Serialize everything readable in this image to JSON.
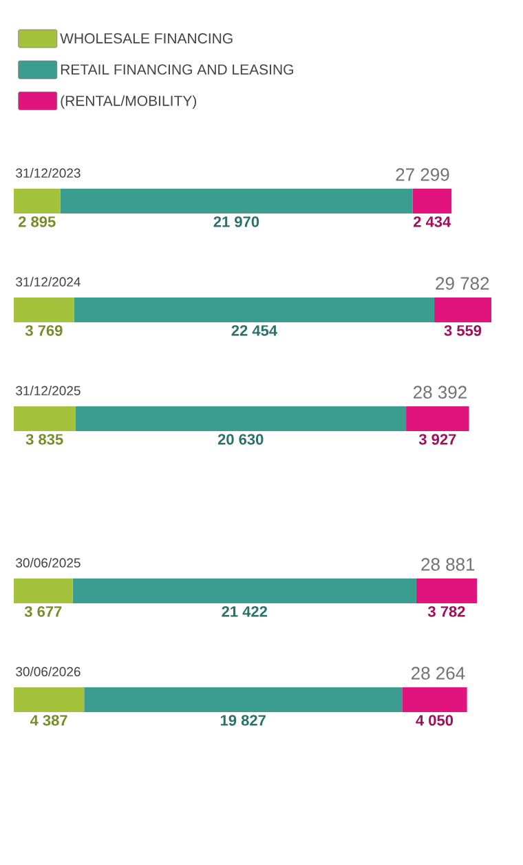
{
  "chart_data": [
    {
      "type": "bar",
      "orientation": "horizontal",
      "stacked": true,
      "legend": "top left",
      "categories": [
        "31/12/2023",
        "31/12/2024",
        "31/12/2025"
      ],
      "series": [
        {
          "name": "WHOLESALE FINANCING",
          "color": "#a4c23c",
          "values": [
            2895,
            3769,
            3835
          ],
          "value_labels": [
            "2 895",
            "3 769",
            "3 835"
          ]
        },
        {
          "name": "RETAIL FINANCING AND LEASING",
          "color": "#3a9d8f",
          "values": [
            21970,
            22454,
            20630
          ],
          "value_labels": [
            "21 970",
            "22 454",
            "20 630"
          ]
        },
        {
          "name": "(RENTAL/MOBILITY)",
          "color": "#e0147c",
          "values": [
            2434,
            3559,
            3927
          ],
          "value_labels": [
            "2 434",
            "3 559",
            "3 927"
          ]
        }
      ],
      "totals": [
        "27 299",
        "29 782",
        "28 392"
      ]
    },
    {
      "type": "bar",
      "orientation": "horizontal",
      "stacked": true,
      "categories": [
        "30/06/2025",
        "30/06/2026"
      ],
      "series": [
        {
          "color": "#a4c23c",
          "values": [
            3677,
            4387
          ],
          "value_labels": [
            "3 677",
            "4 387"
          ]
        },
        {
          "color": "#3a9d8f",
          "values": [
            21422,
            19827
          ],
          "value_labels": [
            "21 422",
            "19 827"
          ]
        },
        {
          "color": "#e0147c",
          "values": [
            3782,
            4050
          ],
          "value_labels": [
            "3 782",
            "4 050"
          ]
        }
      ],
      "totals": [
        "28 881",
        "28 264"
      ]
    }
  ]
}
